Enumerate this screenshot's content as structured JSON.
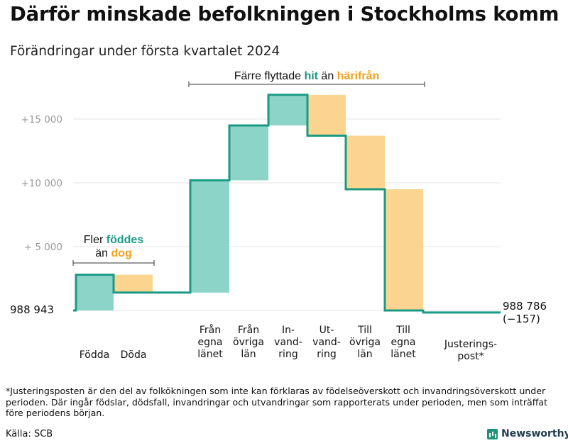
{
  "colors": {
    "increase": "#8dd4c8",
    "decrease": "#fbd590",
    "line": "#1a9a85",
    "grid": "#e6e6e6",
    "teal_text": "#1a9a85",
    "orange_text": "#f2a11e"
  },
  "chart_data": {
    "type": "waterfall",
    "title": "Därför minskade befolkningen i Stockholms komm",
    "subtitle": "Förändringar under första kvartalet 2024",
    "start_label": "988   943",
    "end_label_1": "988 786",
    "end_label_2": "(−157)",
    "y_ticks": [
      {
        "value": 5000,
        "label": "+  5 000"
      },
      {
        "value": 10000,
        "label": "+10   000"
      },
      {
        "value": 15000,
        "label": "+15   000"
      }
    ],
    "ylim": [
      -100,
      17200
    ],
    "steps": [
      {
        "key": "fodda",
        "lines": [
          "Födda"
        ],
        "delta": 2800
      },
      {
        "key": "doda",
        "lines": [
          "Döda"
        ],
        "delta": -1400
      },
      {
        "key": "fran_egna",
        "lines": [
          "Från",
          "egna",
          "länet"
        ],
        "delta": 8800
      },
      {
        "key": "fran_ovriga",
        "lines": [
          "Från",
          "övriga",
          "län"
        ],
        "delta": 4300
      },
      {
        "key": "invandring",
        "lines": [
          "In-",
          "vand-",
          "ring"
        ],
        "delta": 2400
      },
      {
        "key": "utvandring",
        "lines": [
          "Ut-",
          "vand-",
          "ring"
        ],
        "delta": -3200
      },
      {
        "key": "till_ovriga",
        "lines": [
          "Till",
          "övriga",
          "län"
        ],
        "delta": -4200
      },
      {
        "key": "till_egna",
        "lines": [
          "Till",
          "egna",
          "länet"
        ],
        "delta": -9500
      },
      {
        "key": "justering",
        "lines": [
          "Justerings-",
          "post*"
        ],
        "delta": -157
      }
    ],
    "annotation_top": {
      "prefix": "Färre flyttade ",
      "word1": "hit",
      "middle": " än ",
      "word2": "härifrån"
    },
    "annotation_left": {
      "line1_prefix": "Fler ",
      "line1_word": "föddes",
      "line2_prefix": "än ",
      "line2_word": "dog"
    }
  },
  "footnote": "*Justeringsposten är den del av folkökningen som inte kan förklaras av födelseöverskott och invandringsöverskott under perioden. Där ingår födslar, dödsfall, invandringar och utvandringar som rapporterats under perioden, men som inträffat före periodens början.",
  "source": "Källa: SCB",
  "brand": "Newsworthy"
}
